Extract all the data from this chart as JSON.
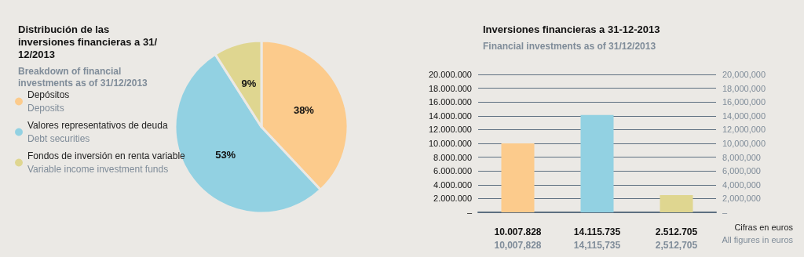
{
  "chart_data": [
    {
      "type": "pie",
      "title": "Distribución de las inversiones financieras a 31/12/2013",
      "subtitle": "Breakdown of financial investments as of 31/12/2013",
      "categories": [
        "Depósitos\nDeposits",
        "Valores representativos de deuda\nDebt securities",
        "Fondos de inversión en renta variable\nVariable income investment funds"
      ],
      "values": [
        38,
        53,
        9
      ],
      "colors": [
        "#fccb8c",
        "#92d1e2",
        "#dfd690"
      ],
      "value_labels": [
        "38%",
        "53%",
        "9%"
      ],
      "legend": "left"
    },
    {
      "type": "bar",
      "title": "Inversiones financieras a 31-12-2013",
      "subtitle": "Financial investments as of 31/12/2013",
      "categories": [
        null,
        null,
        null
      ],
      "values": [
        10007828,
        14115735,
        2512705
      ],
      "colors": [
        "#fccb8c",
        "#92d1e2",
        "#dfd690"
      ],
      "value_labels": [
        "10.007.828\n10,007,828",
        "14.115.735\n14,115,735",
        "2.512.705\n2,512,705"
      ],
      "ylim": [
        0,
        20000000
      ],
      "yticks": [
        {
          "value": 0,
          "label": "–"
        },
        {
          "value": 2000000,
          "label": "2.000.000"
        },
        {
          "value": 4000000,
          "label": "4.000.000"
        },
        {
          "value": 6000000,
          "label": "6.000.000"
        },
        {
          "value": 8000000,
          "label": "8.000.000"
        },
        {
          "value": 10000000,
          "label": "10.000.000"
        },
        {
          "value": 12000000,
          "label": "12.000.000"
        },
        {
          "value": 14000000,
          "label": "14.000.000"
        },
        {
          "value": 16000000,
          "label": "16.000.000"
        },
        {
          "value": 18000000,
          "label": "18.000.000"
        },
        {
          "value": 20000000,
          "label": "20.000.000"
        }
      ],
      "y2lim": [
        0,
        20000000
      ],
      "y2ticks": [
        {
          "value": 0,
          "label": "–"
        },
        {
          "value": 2000000,
          "label": "2,000,000"
        },
        {
          "value": 4000000,
          "label": "4,000,000"
        },
        {
          "value": 6000000,
          "label": "6,000,000"
        },
        {
          "value": 8000000,
          "label": "8,000,000"
        },
        {
          "value": 10000000,
          "label": "10,000,000"
        },
        {
          "value": 12000000,
          "label": "12,000,000"
        },
        {
          "value": 14000000,
          "label": "14,000,000"
        },
        {
          "value": 16000000,
          "label": "16,000,000"
        },
        {
          "value": 18000000,
          "label": "18,000,000"
        },
        {
          "value": 20000000,
          "label": "20,000,000"
        }
      ],
      "grid": "y",
      "legend": false,
      "annotations": [
        "Cifras en euros",
        "All figures in euros"
      ]
    }
  ]
}
